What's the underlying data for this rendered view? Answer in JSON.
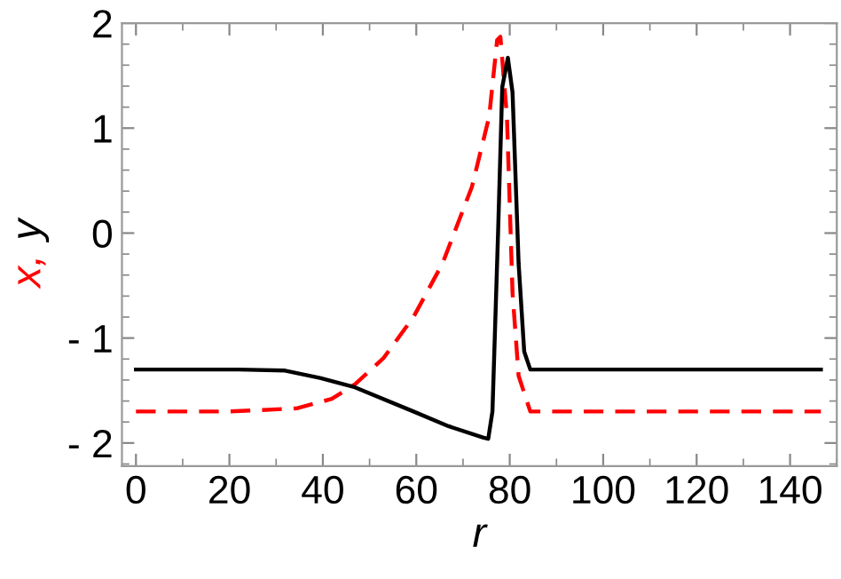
{
  "chart_data": {
    "type": "line",
    "xlabel": "r",
    "ylabel": "x, y",
    "xlim": [
      -3,
      150
    ],
    "ylim": [
      -2.22,
      2.0
    ],
    "xticks": [
      0,
      20,
      40,
      60,
      80,
      100,
      120,
      140
    ],
    "yticks": [
      {
        "value": -2,
        "label": "- 2"
      },
      {
        "value": -1,
        "label": "- 1"
      },
      0,
      1,
      2
    ],
    "grid": false,
    "legend": false,
    "series": [
      {
        "color": "#ff0000",
        "line_style": "dashed",
        "x": [
          0,
          20,
          34.4,
          41.9,
          46.9,
          53,
          59.4,
          65.6,
          71.9,
          75.6,
          77.3,
          78,
          79.4,
          80.6,
          81.9,
          84.4,
          100,
          146.6
        ],
        "values": [
          -1.7,
          -1.7,
          -1.67,
          -1.58,
          -1.44,
          -1.19,
          -0.8,
          -0.29,
          0.44,
          1.11,
          1.84,
          1.87,
          1.11,
          -0.57,
          -1.36,
          -1.7,
          -1.7,
          -1.7
        ]
      },
      {
        "color": "#000000",
        "line_style": "solid",
        "x": [
          0,
          21.9,
          31.9,
          39.4,
          46.9,
          59.4,
          66.9,
          74.4,
          75.4,
          76.3,
          77.5,
          78.4,
          79.6,
          80.6,
          81.9,
          83.1,
          84.4,
          100,
          146.6
        ],
        "values": [
          -1.3,
          -1.3,
          -1.31,
          -1.38,
          -1.47,
          -1.7,
          -1.84,
          -1.95,
          -1.96,
          -1.7,
          0,
          1.39,
          1.67,
          1.34,
          -0.29,
          -1.13,
          -1.3,
          -1.3,
          -1.3
        ]
      }
    ]
  }
}
